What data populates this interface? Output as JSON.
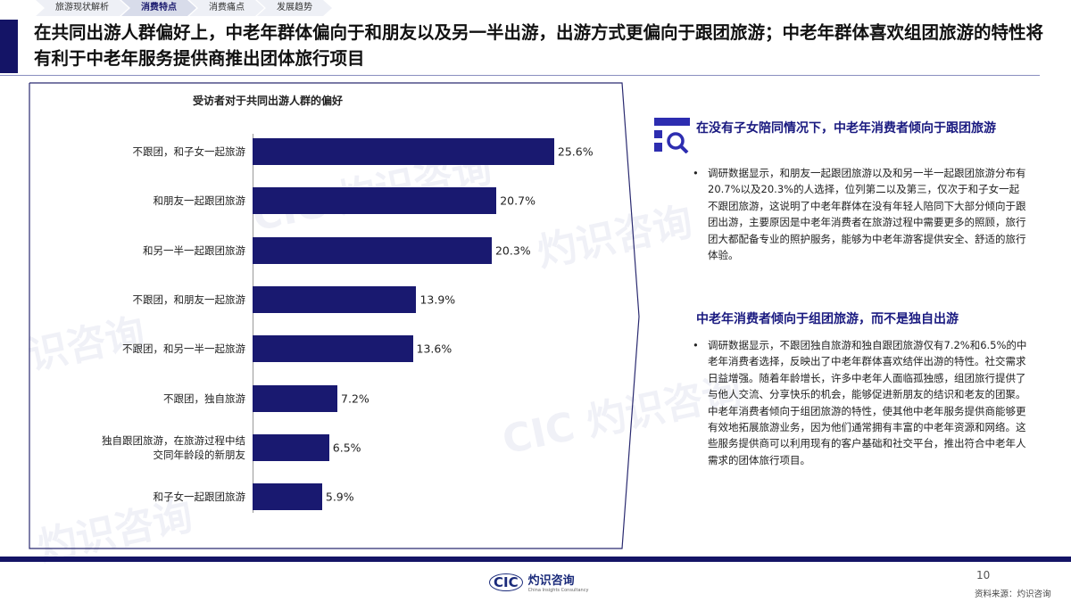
{
  "tabs": [
    "旅游现状解析",
    "消费特点",
    "消费痛点",
    "发展趋势"
  ],
  "active_tab": 1,
  "title": "在共同出游人群偏好上，中老年群体偏向于和朋友以及另一半出游，出游方式更偏向于跟团旅游；中老年群体喜欢组团旅游的特性将有利于中老年服务提供商推出团体旅行项目",
  "chart_data": {
    "type": "bar",
    "orientation": "horizontal",
    "title": "受访者对于共同出游人群的偏好",
    "categories": [
      "不跟团，和子女一起旅游",
      "和朋友一起跟团旅游",
      "和另一半一起跟团旅游",
      "不跟团，和朋友一起旅游",
      "不跟团，和另一半一起旅游",
      "不跟团，独自旅游",
      "独自跟团旅游，在旅游过程中结交同年龄段的新朋友",
      "和子女一起跟团旅游"
    ],
    "values": [
      25.6,
      20.7,
      20.3,
      13.9,
      13.6,
      7.2,
      6.5,
      5.9
    ],
    "labels": [
      "25.6%",
      "20.7%",
      "20.3%",
      "13.9%",
      "13.6%",
      "7.2%",
      "6.5%",
      "5.9%"
    ],
    "unit": "%",
    "color": "#191970"
  },
  "insights": [
    {
      "heading": "在没有子女陪同情况下，中老年消费者倾向于跟团旅游",
      "body": "调研数据显示，和朋友一起跟团旅游以及和另一半一起跟团旅游分布有20.7%以及20.3%的人选择，位列第二以及第三，仅次于和子女一起不跟团旅游，这说明了中老年群体在没有年轻人陪同下大部分倾向于跟团出游，主要原因是中老年消费者在旅游过程中需要更多的照顾，旅行团大都配备专业的照护服务，能够为中老年游客提供安全、舒适的旅行体验。"
    },
    {
      "heading": "中老年消费者倾向于组团旅游，而不是独自出游",
      "body": "调研数据显示，不跟团独自旅游和独自跟团旅游仅有7.2%和6.5%的中老年消费者选择，反映出了中老年群体喜欢结伴出游的特性。社交需求日益增强。随着年龄增长，许多中老年人面临孤独感，组团旅行提供了与他人交流、分享快乐的机会，能够促进新朋友的结识和老友的团聚。中老年消费者倾向于组团旅游的特性，使其他中老年服务提供商能够更有效地拓展旅游业务，因为他们通常拥有丰富的中老年资源和网络。这些服务提供商可以利用现有的客户基础和社交平台，推出符合中老年人需求的团体旅行项目。"
    }
  ],
  "footer": {
    "logo_abbr": "CIC",
    "logo_name": "灼识咨询",
    "logo_en": "China Insights Consultancy",
    "page": "10",
    "source": "资料来源：灼识咨询"
  },
  "watermark": "灼识咨询"
}
